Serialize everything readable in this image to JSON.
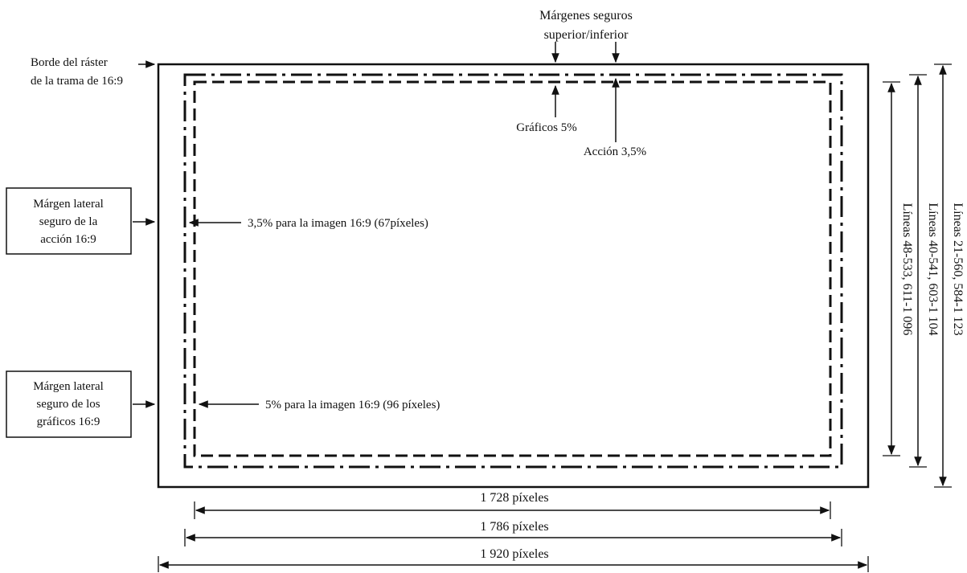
{
  "labels": {
    "top_margins_line1": "Márgenes seguros",
    "top_margins_line2": "superior/inferior",
    "raster_edge_line1": "Borde del ráster",
    "raster_edge_line2": "de la trama de 16:9",
    "graphics_pct": "Gráficos 5%",
    "action_pct": "Acción 3,5%",
    "action_side_box": [
      "Márgen lateral",
      "seguro de la",
      "acción  16:9"
    ],
    "graphics_side_box": [
      "Márgen lateral",
      "seguro de los",
      "gráficos 16:9"
    ],
    "action_note": "3,5% para la imagen 16:9 (67píxeles)",
    "graphics_note": "5% para la imagen 16:9 (96 píxeles)"
  },
  "widths": {
    "graphics": "1 728 píxeles",
    "action": "1 786 píxeles",
    "raster": "1 920 píxeles"
  },
  "lines": {
    "graphics": "Líneas 48-533, 611-1 096",
    "action": "Líneas 40-541, 603-1 104",
    "raster": "Líneas 21-560, 584-1 123"
  }
}
